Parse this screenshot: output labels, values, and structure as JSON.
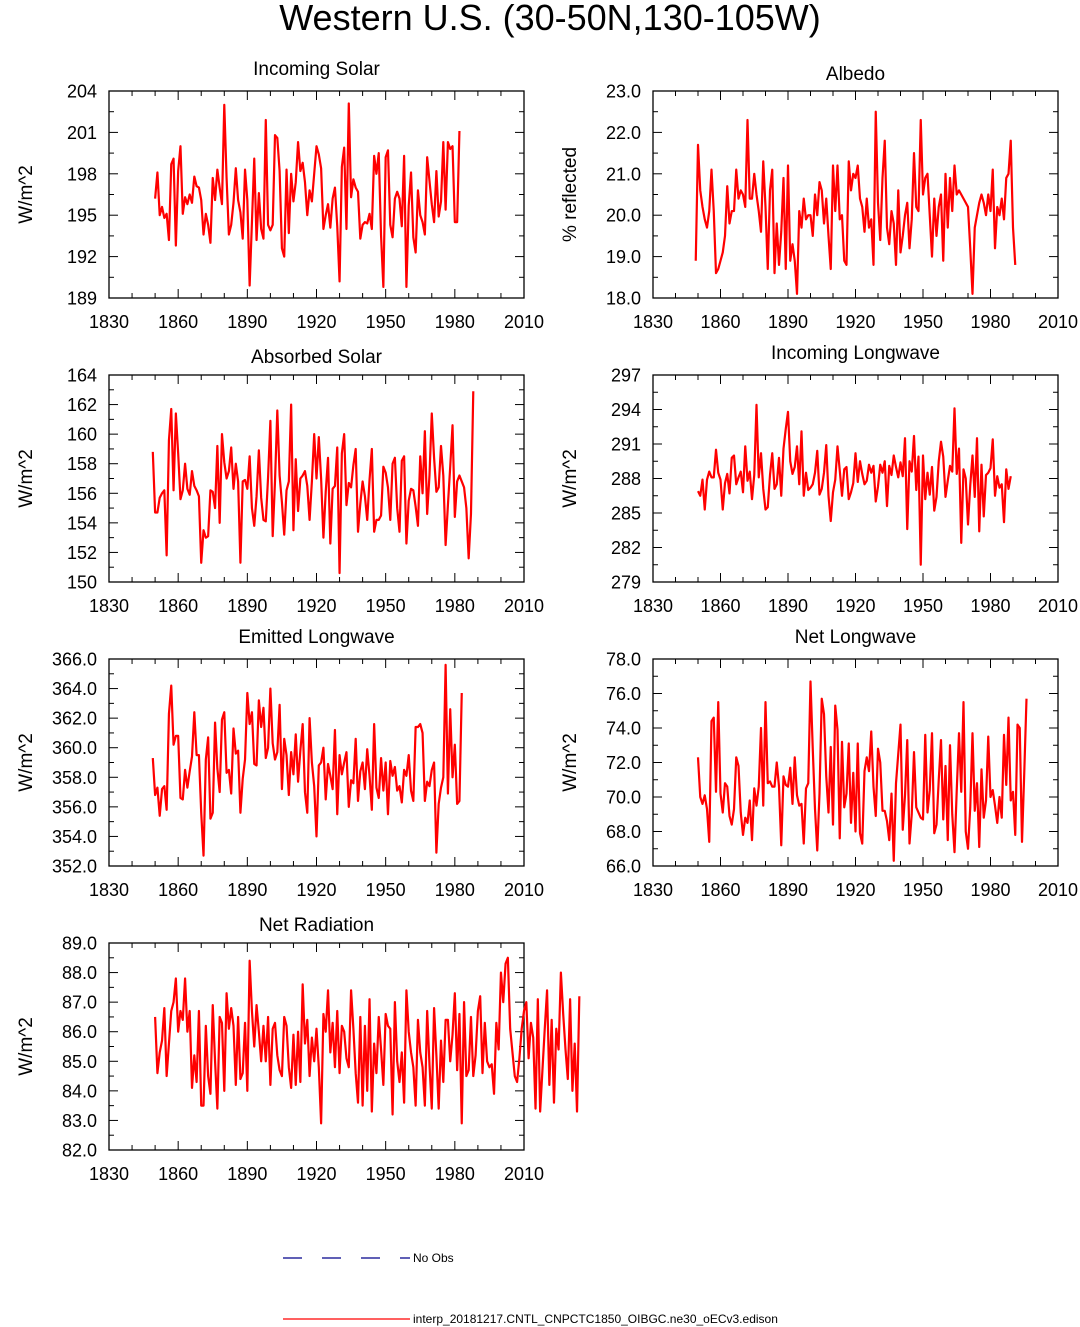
{
  "figure": {
    "title": "Western U.S. (30-50N,130-105W)",
    "legend": {
      "obs_label": "No Obs",
      "model_label": "interp_20181217.CNTL_CNPCTC1850_OIBGC.ne30_oECv3.edison"
    },
    "colors": {
      "series": "#ff0000",
      "obs": "#00008b",
      "axis": "#000000"
    }
  },
  "chart_data": [
    {
      "type": "line",
      "title": "Incoming Solar",
      "ylabel": "W/m^2",
      "xlabel": "",
      "xlim": [
        1830,
        2010
      ],
      "ylim": [
        189,
        204
      ],
      "xticks": [
        1830,
        1860,
        1890,
        1920,
        1950,
        1980,
        2010
      ],
      "yticks": [
        189,
        192,
        195,
        198,
        201,
        204
      ],
      "ytick_labels": [
        "189",
        "192",
        "195",
        "198",
        "201",
        "204"
      ],
      "x_start": 1850,
      "values": [
        196.2,
        198.1,
        195.0,
        195.6,
        194.8,
        195.1,
        193.2,
        198.7,
        199.1,
        192.8,
        198.2,
        200.0,
        195.1,
        196.3,
        195.8,
        196.5,
        195.9,
        197.8,
        197.1,
        197.0,
        196.1,
        193.6,
        195.1,
        194.3,
        193.0,
        197.7,
        196.1,
        198.3,
        197.0,
        195.8,
        203.0,
        197.7,
        193.6,
        194.3,
        195.9,
        198.4,
        196.1,
        195.2,
        193.3,
        198.3,
        196.1,
        189.9,
        194.5,
        199.1,
        193.2,
        196.6,
        194.0,
        193.3,
        201.9,
        194.3,
        193.9,
        194.3,
        200.8,
        200.6,
        198.2,
        192.6,
        192.0,
        198.3,
        193.7,
        198.0,
        196.0,
        197.4,
        200.3,
        198.2,
        198.8,
        197.4,
        195.0,
        196.8,
        196.0,
        198.0,
        200.0,
        199.4,
        198.4,
        194.0,
        195.0,
        195.8,
        194.1,
        196.2,
        197.0,
        194.2,
        190.2,
        198.5,
        199.9,
        194.0,
        203.1,
        196.3,
        197.6,
        197.0,
        196.7,
        193.3,
        194.3,
        194.5,
        194.4,
        195.1,
        194.0,
        199.3,
        198.0,
        199.5,
        193.5,
        189.8,
        199.2,
        199.7,
        194.3,
        193.4,
        196.2,
        196.7,
        196.2,
        194.2,
        199.3,
        189.8,
        195.7,
        198.1,
        193.4,
        192.3,
        196.8,
        195.0,
        194.5,
        193.6,
        199.2,
        197.5,
        195.8,
        194.5,
        198.2,
        194.9,
        196.0,
        200.3,
        195.4,
        200.3,
        199.8,
        200.0,
        194.5,
        194.5,
        201.1
      ]
    },
    {
      "type": "line",
      "title": "Albedo",
      "ylabel": "% reflected",
      "xlabel": "",
      "xlim": [
        1830,
        2010
      ],
      "ylim": [
        18.0,
        23.0
      ],
      "xticks": [
        1830,
        1860,
        1890,
        1920,
        1950,
        1980,
        2010
      ],
      "yticks": [
        18.0,
        19.0,
        20.0,
        21.0,
        22.0,
        23.0
      ],
      "ytick_labels": [
        "18.0",
        "19.0",
        "20.0",
        "21.0",
        "22.0",
        "23.0"
      ],
      "x_start": 1849,
      "values": [
        18.9,
        21.7,
        20.6,
        20.2,
        19.9,
        19.7,
        20.1,
        21.1,
        20.1,
        18.6,
        18.7,
        18.9,
        19.1,
        19.5,
        20.7,
        19.8,
        20.1,
        20.1,
        21.1,
        20.4,
        20.6,
        20.5,
        20.2,
        22.3,
        20.4,
        20.4,
        21.0,
        20.5,
        20.1,
        19.6,
        21.3,
        20.2,
        18.7,
        20.6,
        21.1,
        18.6,
        19.8,
        18.8,
        19.6,
        20.9,
        18.7,
        21.2,
        18.9,
        19.3,
        18.9,
        18.1,
        20.1,
        19.7,
        20.4,
        19.9,
        20.0,
        20.0,
        19.5,
        20.5,
        20.0,
        20.8,
        20.6,
        19.8,
        20.4,
        19.5,
        18.7,
        21.2,
        20.1,
        21.2,
        19.9,
        20.0,
        18.9,
        18.8,
        21.3,
        20.6,
        21.0,
        20.9,
        21.2,
        20.4,
        20.2,
        19.6,
        20.4,
        19.7,
        19.9,
        18.8,
        22.5,
        20.3,
        19.4,
        20.9,
        21.8,
        19.7,
        19.3,
        20.1,
        19.8,
        18.8,
        20.6,
        19.1,
        19.5,
        20.0,
        20.3,
        19.2,
        19.9,
        21.5,
        20.2,
        20.1,
        22.3,
        20.5,
        20.9,
        21.0,
        20.0,
        19.0,
        20.4,
        19.5,
        20.2,
        20.5,
        18.9,
        21.0,
        19.7,
        20.9,
        20.1,
        21.2,
        20.5,
        20.6,
        20.5,
        20.4,
        20.3,
        20.2,
        19.2,
        18.1,
        19.7,
        20.0,
        20.3,
        20.5,
        20.3,
        20.0,
        20.5,
        20.1,
        21.1,
        19.2,
        20.2,
        20.0,
        20.4,
        19.9,
        20.9,
        21.0,
        21.8,
        19.7,
        18.8
      ]
    },
    {
      "type": "line",
      "title": "Absorbed Solar",
      "ylabel": "W/m^2",
      "xlabel": "",
      "xlim": [
        1830,
        2010
      ],
      "ylim": [
        150,
        164
      ],
      "xticks": [
        1830,
        1860,
        1890,
        1920,
        1950,
        1980,
        2010
      ],
      "yticks": [
        150,
        152,
        154,
        156,
        158,
        160,
        162,
        164
      ],
      "ytick_labels": [
        "150",
        "152",
        "154",
        "156",
        "158",
        "160",
        "162",
        "164"
      ],
      "x_start": 1849,
      "values": [
        158.8,
        154.7,
        154.7,
        155.7,
        156.0,
        156.2,
        151.8,
        159.6,
        161.7,
        156.2,
        161.4,
        158.7,
        155.6,
        156.2,
        158.0,
        156.3,
        155.9,
        157.5,
        156.5,
        156.2,
        155.8,
        151.3,
        153.5,
        153.0,
        153.1,
        156.2,
        156.1,
        155.0,
        159.2,
        154.0,
        160.0,
        158.1,
        157.0,
        157.5,
        159.1,
        156.3,
        158.0,
        156.8,
        151.3,
        156.8,
        156.9,
        156.3,
        158.5,
        155.0,
        153.8,
        155.8,
        158.9,
        155.7,
        154.2,
        154.1,
        157.1,
        160.9,
        153.1,
        156.8,
        161.6,
        157.2,
        155.4,
        153.2,
        156.2,
        156.8,
        162.0,
        153.5,
        158.3,
        154.8,
        157.0,
        157.2,
        157.5,
        156.5,
        154.2,
        156.8,
        160.0,
        157.0,
        159.8,
        157.0,
        153.0,
        156.1,
        158.4,
        152.6,
        156.3,
        156.5,
        159.1,
        150.6,
        158.7,
        160.0,
        155.2,
        156.7,
        156.4,
        157.9,
        159.0,
        153.4,
        155.3,
        156.8,
        155.8,
        154.2,
        156.9,
        159.0,
        153.4,
        154.2,
        154.2,
        154.5,
        157.8,
        157.4,
        156.4,
        154.2,
        158.0,
        158.4,
        155.0,
        153.4,
        158.2,
        158.5,
        152.6,
        155.5,
        156.3,
        156.2,
        155.1,
        153.8,
        158.5,
        156.0,
        160.2,
        154.6,
        157.2,
        161.4,
        158.4,
        156.1,
        156.4,
        159.2,
        157.2,
        152.5,
        155.2,
        157.8,
        160.6,
        154.4,
        156.8,
        157.2,
        156.8,
        156.4,
        155.0,
        151.6,
        154.6,
        162.9
      ]
    },
    {
      "type": "line",
      "title": "Incoming Longwave",
      "ylabel": "W/m^2",
      "xlabel": "",
      "xlim": [
        1830,
        2010
      ],
      "ylim": [
        279,
        297
      ],
      "xticks": [
        1830,
        1860,
        1890,
        1920,
        1950,
        1980,
        2010
      ],
      "yticks": [
        279,
        282,
        285,
        288,
        291,
        294,
        297
      ],
      "ytick_labels": [
        "279",
        "282",
        "285",
        "288",
        "291",
        "294",
        "297"
      ],
      "x_start": 1850,
      "values": [
        286.9,
        286.5,
        287.9,
        285.3,
        287.9,
        288.6,
        288.1,
        288.1,
        290.5,
        288.5,
        287.9,
        285.3,
        287.6,
        288.4,
        286.7,
        289.8,
        290.0,
        287.5,
        288.1,
        288.6,
        286.8,
        290.8,
        287.8,
        288.6,
        286.2,
        288.3,
        294.4,
        288.1,
        290.2,
        287.1,
        285.3,
        285.5,
        288.3,
        290.2,
        287.1,
        287.5,
        289.8,
        286.5,
        290.6,
        292.3,
        293.8,
        289.5,
        288.4,
        289.0,
        290.8,
        287.5,
        292.1,
        286.5,
        288.5,
        287.0,
        287.2,
        287.5,
        288.5,
        290.4,
        286.6,
        287.1,
        288.5,
        290.9,
        286.5,
        284.3,
        286.8,
        287.9,
        290.8,
        288.7,
        286.5,
        288.8,
        289.0,
        286.2,
        286.8,
        287.6,
        290.2,
        287.7,
        289.5,
        288.4,
        287.5,
        287.8,
        289.2,
        288.5,
        289.1,
        286.0,
        287.3,
        289.2,
        288.5,
        289.5,
        285.6,
        289.1,
        288.3,
        290.0,
        289.0,
        288.1,
        289.4,
        288.2,
        291.5,
        283.6,
        289.5,
        288.6,
        291.7,
        287.0,
        289.9,
        280.5,
        290.0,
        286.2,
        288.5,
        286.6,
        289.0,
        285.2,
        286.4,
        289.5,
        291.2,
        289.9,
        286.4,
        287.8,
        289.1,
        288.6,
        294.1,
        288.4,
        290.6,
        282.4,
        288.8,
        288.0,
        284.0,
        287.4,
        290.0,
        286.4,
        291.5,
        283.4,
        289.2,
        284.7,
        288.3,
        288.5,
        288.9,
        291.4,
        286.5,
        288.2,
        287.2,
        287.5,
        284.2,
        288.8,
        287.1,
        288.2
      ]
    },
    {
      "type": "line",
      "title": "Emitted Longwave",
      "ylabel": "W/m^2",
      "xlabel": "",
      "xlim": [
        1830,
        2010
      ],
      "ylim": [
        352.0,
        366.0
      ],
      "xticks": [
        1830,
        1860,
        1890,
        1920,
        1950,
        1980,
        2010
      ],
      "yticks": [
        352,
        354,
        356,
        358,
        360,
        362,
        364,
        366
      ],
      "ytick_labels": [
        "352.0",
        "354.0",
        "356.0",
        "358.0",
        "360.0",
        "362.0",
        "364.0",
        "366.0"
      ],
      "x_start": 1849,
      "values": [
        359.3,
        356.8,
        357.3,
        355.4,
        357.2,
        357.4,
        355.8,
        362.3,
        364.2,
        360.2,
        360.8,
        360.8,
        356.6,
        356.5,
        358.5,
        357.3,
        358.4,
        359.4,
        362.4,
        359.5,
        359.5,
        355.6,
        352.7,
        359.2,
        360.7,
        355.2,
        355.6,
        361.7,
        358.6,
        357.0,
        361.9,
        362.4,
        358.3,
        358.5,
        356.9,
        361.3,
        359.6,
        359.8,
        355.6,
        357.9,
        359.2,
        363.7,
        361.6,
        362.4,
        358.9,
        358.8,
        363.2,
        361.4,
        362.7,
        359.3,
        360.0,
        364.0,
        360.3,
        359.2,
        359.7,
        362.9,
        357.2,
        360.6,
        359.5,
        356.8,
        359.7,
        358.2,
        360.9,
        357.7,
        359.8,
        361.6,
        357.0,
        355.6,
        362.0,
        359.0,
        357.4,
        354.0,
        358.8,
        359.0,
        360.0,
        356.5,
        358.9,
        358.1,
        357.2,
        361.2,
        355.5,
        359.5,
        358.2,
        359.0,
        359.7,
        356.0,
        357.8,
        357.6,
        360.6,
        356.4,
        358.4,
        359.0,
        357.2,
        359.9,
        358.1,
        355.8,
        361.6,
        357.3,
        356.6,
        359.3,
        357.1,
        359.0,
        355.5,
        359.1,
        358.1,
        358.7,
        357.1,
        357.4,
        356.3,
        358.5,
        358.1,
        359.5,
        357.1,
        356.4,
        361.4,
        361.4,
        361.6,
        361.0,
        356.4,
        357.7,
        357.4,
        358.5,
        359.0,
        352.9,
        356.2,
        357.3,
        358.0,
        365.6,
        356.9,
        362.6,
        358.0,
        360.2,
        356.2,
        356.4,
        363.7
      ]
    },
    {
      "type": "line",
      "title": "Net Longwave",
      "ylabel": "W/m^2",
      "xlabel": "",
      "xlim": [
        1830,
        2010
      ],
      "ylim": [
        66.0,
        78.0
      ],
      "xticks": [
        1830,
        1860,
        1890,
        1920,
        1950,
        1980,
        2010
      ],
      "yticks": [
        66,
        68,
        70,
        72,
        74,
        76,
        78
      ],
      "ytick_labels": [
        "66.0",
        "68.0",
        "70.0",
        "72.0",
        "74.0",
        "76.0",
        "78.0"
      ],
      "x_start": 1850,
      "values": [
        72.3,
        70.0,
        69.6,
        70.1,
        69.3,
        67.4,
        74.4,
        74.6,
        70.3,
        75.5,
        70.2,
        69.1,
        70.8,
        70.6,
        68.9,
        68.4,
        69.3,
        72.3,
        71.8,
        69.1,
        67.8,
        68.8,
        68.5,
        69.8,
        67.5,
        70.5,
        69.5,
        70.6,
        74.0,
        69.5,
        75.5,
        70.8,
        70.9,
        70.6,
        70.6,
        72.0,
        70.6,
        67.2,
        71.2,
        70.7,
        70.6,
        71.7,
        69.6,
        72.3,
        70.1,
        69.5,
        69.6,
        67.3,
        70.5,
        70.8,
        76.7,
        72.8,
        69.3,
        66.9,
        70.2,
        75.7,
        74.8,
        71.2,
        69.1,
        72.9,
        68.4,
        75.3,
        73.9,
        67.6,
        73.2,
        69.4,
        70.2,
        73.1,
        68.5,
        71.4,
        68.0,
        73.1,
        67.9,
        67.3,
        71.5,
        72.3,
        71.5,
        73.8,
        70.6,
        68.9,
        72.8,
        72.0,
        69.2,
        69.2,
        68.6,
        67.5,
        70.2,
        66.3,
        70.8,
        72.5,
        74.2,
        68.1,
        70.1,
        73.3,
        67.3,
        69.0,
        72.6,
        69.4,
        69.1,
        68.8,
        68.7,
        73.6,
        69.1,
        70.4,
        73.7,
        67.9,
        68.4,
        71.0,
        73.3,
        68.7,
        71.8,
        67.5,
        73.0,
        69.0,
        66.8,
        70.4,
        73.7,
        70.3,
        75.5,
        68.0,
        67.0,
        69.4,
        73.7,
        69.2,
        70.8,
        67.1,
        71.6,
        68.8,
        69.8,
        73.5,
        70.0,
        70.4,
        69.5,
        68.5,
        70.0,
        68.8,
        73.6,
        70.7,
        74.6,
        69.8,
        70.3,
        67.8,
        74.2,
        74.0,
        67.4,
        71.4,
        75.7
      ]
    },
    {
      "type": "line",
      "title": "Net Radiation",
      "ylabel": "W/m^2",
      "xlabel": "",
      "xlim": [
        1830,
        2010
      ],
      "ylim": [
        82.0,
        89.0
      ],
      "xticks": [
        1830,
        1860,
        1890,
        1920,
        1950,
        1980,
        2010
      ],
      "yticks": [
        82,
        83,
        84,
        85,
        86,
        87,
        88,
        89
      ],
      "ytick_labels": [
        "82.0",
        "83.0",
        "84.0",
        "85.0",
        "86.0",
        "87.0",
        "88.0",
        "89.0"
      ],
      "x_start": 1850,
      "values": [
        86.5,
        84.6,
        85.3,
        85.7,
        86.8,
        84.5,
        85.6,
        86.7,
        87.0,
        87.8,
        86.0,
        86.7,
        86.4,
        87.8,
        86.0,
        86.7,
        84.1,
        85.2,
        84.3,
        86.7,
        83.5,
        83.5,
        86.2,
        84.5,
        83.9,
        86.9,
        85.0,
        83.4,
        86.5,
        86.3,
        84.0,
        87.3,
        86.1,
        86.8,
        86.2,
        84.2,
        86.5,
        84.4,
        84.6,
        86.3,
        84.0,
        88.4,
        86.7,
        85.5,
        86.9,
        86.0,
        85.0,
        86.2,
        85.0,
        86.5,
        84.2,
        86.1,
        86.3,
        85.2,
        84.7,
        84.5,
        86.5,
        86.2,
        84.8,
        84.1,
        85.9,
        84.2,
        86.0,
        84.3,
        87.6,
        85.6,
        86.4,
        84.5,
        85.8,
        85.0,
        86.1,
        84.8,
        82.9,
        86.6,
        86.0,
        87.4,
        85.3,
        86.3,
        84.8,
        86.7,
        84.6,
        86.2,
        86.0,
        85.1,
        84.8,
        87.4,
        86.1,
        84.6,
        83.6,
        86.5,
        83.5,
        86.2,
        84.0,
        87.1,
        83.3,
        85.6,
        84.6,
        86.5,
        85.4,
        84.2,
        86.6,
        86.2,
        86.1,
        83.2,
        87.0,
        85.0,
        84.3,
        85.3,
        83.6,
        87.4,
        86.0,
        85.3,
        84.8,
        83.5,
        86.4,
        85.3,
        84.8,
        83.5,
        86.7,
        84.9,
        83.4,
        86.8,
        85.2,
        83.4,
        85.7,
        84.3,
        86.4,
        86.4,
        85.0,
        85.9,
        87.3,
        84.7,
        86.6,
        82.9,
        87.0,
        84.5,
        84.7,
        86.5,
        84.5,
        85.2,
        86.7,
        87.2,
        84.6,
        86.3,
        85.0,
        84.8,
        84.9,
        83.9,
        86.3,
        85.4,
        88.0,
        87.0,
        88.3,
        88.5,
        86.1,
        85.3,
        84.5,
        84.3,
        85.1,
        86.1,
        86.7,
        87.0,
        85.1,
        86.3,
        85.8,
        83.4,
        87.1,
        83.3,
        84.7,
        86.1,
        87.4,
        84.2,
        86.4,
        83.6,
        86.1,
        85.4,
        88.0,
        86.6,
        85.4,
        84.4,
        87.1,
        84.0,
        85.6,
        83.3,
        87.2
      ]
    }
  ]
}
